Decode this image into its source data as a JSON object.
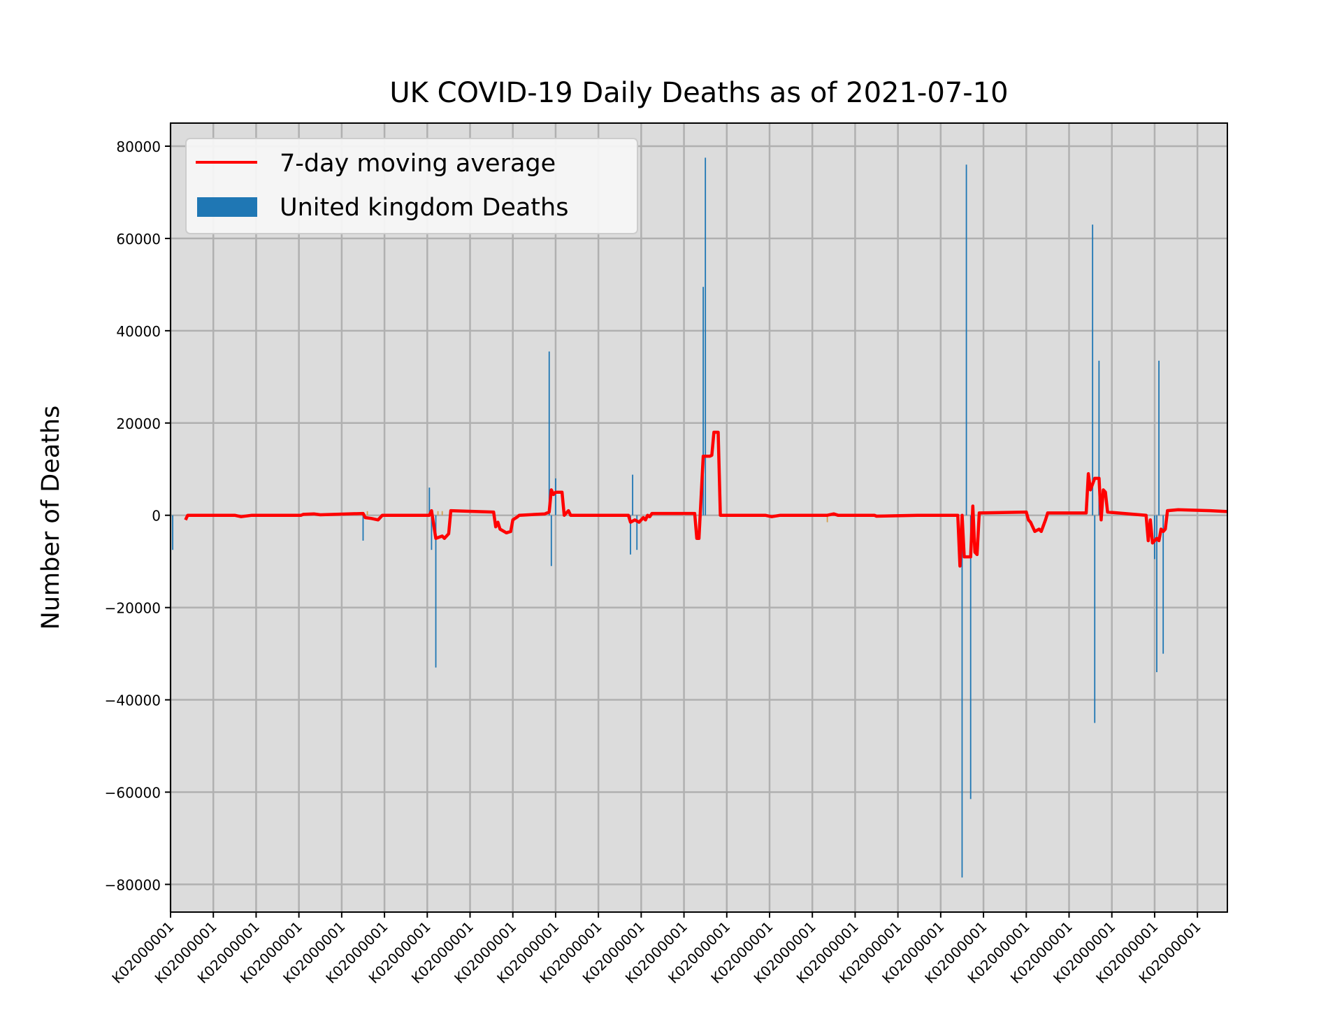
{
  "colors": {
    "figure_bg": "#ffffff",
    "axes_bg": "#dcdcdc",
    "grid": "#b0b0b0",
    "bar": "#1f77b4",
    "bar_small": "#d4a050",
    "line": "#ff0000",
    "text": "#000000"
  },
  "chart_data": {
    "type": "bar",
    "title": "UK COVID-19 Daily Deaths as of 2021-07-10",
    "xlabel": "",
    "ylabel": "Number of Deaths",
    "ylim": [
      -86000,
      85000
    ],
    "yticks": [
      -80000,
      -60000,
      -40000,
      -20000,
      0,
      20000,
      40000,
      60000,
      80000
    ],
    "ytick_labels": [
      "−80000",
      "−60000",
      "−40000",
      "−20000",
      "0",
      "20000",
      "40000",
      "60000",
      "80000"
    ],
    "xtick_labels": [
      "K02000001",
      "K02000001",
      "K02000001",
      "K02000001",
      "K02000001",
      "K02000001",
      "K02000001",
      "K02000001",
      "K02000001",
      "K02000001",
      "K02000001",
      "K02000001",
      "K02000001",
      "K02000001",
      "K02000001",
      "K02000001",
      "K02000001",
      "K02000001",
      "K02000001",
      "K02000001",
      "K02000001",
      "K02000001",
      "K02000001",
      "K02000001",
      "K02000001"
    ],
    "x_range": [
      0,
      494
    ],
    "xtick_positions": [
      0,
      20,
      40,
      60,
      80,
      100,
      120,
      140,
      160,
      180,
      200,
      220,
      240,
      260,
      280,
      300,
      320,
      340,
      360,
      380,
      400,
      420,
      440,
      460,
      480
    ],
    "grid": true,
    "legend": {
      "placement": "top-left",
      "entries": [
        {
          "label": "7-day moving average",
          "kind": "line"
        },
        {
          "label": "United kingdom Deaths",
          "kind": "bar"
        }
      ]
    },
    "series": [
      {
        "name": "United kingdom Deaths",
        "kind": "bar",
        "points": [
          [
            1,
            -7500
          ],
          [
            90,
            -5500
          ],
          [
            92,
            900
          ],
          [
            121,
            6000
          ],
          [
            122,
            -7500
          ],
          [
            124,
            -33000
          ],
          [
            125,
            900
          ],
          [
            127,
            900
          ],
          [
            177,
            35500
          ],
          [
            178,
            -11000
          ],
          [
            180,
            8000
          ],
          [
            215,
            -8500
          ],
          [
            216,
            8800
          ],
          [
            218,
            -7500
          ],
          [
            249,
            49500
          ],
          [
            250,
            77500
          ],
          [
            307,
            -1500
          ],
          [
            370,
            -78500
          ],
          [
            372,
            76000
          ],
          [
            374,
            -61500
          ],
          [
            431,
            63000
          ],
          [
            432,
            -45000
          ],
          [
            434,
            33500
          ],
          [
            460,
            -9500
          ],
          [
            461,
            -34000
          ],
          [
            462,
            33500
          ],
          [
            464,
            -30000
          ],
          [
            466,
            1000
          ]
        ]
      },
      {
        "name": "7-day moving average",
        "kind": "line",
        "points": [
          [
            7,
            -1000
          ],
          [
            8,
            0
          ],
          [
            30,
            0
          ],
          [
            33,
            -300
          ],
          [
            38,
            0
          ],
          [
            61,
            0
          ],
          [
            62,
            200
          ],
          [
            67,
            300
          ],
          [
            70,
            100
          ],
          [
            90,
            400
          ],
          [
            91,
            -500
          ],
          [
            94,
            -700
          ],
          [
            97,
            -1000
          ],
          [
            99,
            0
          ],
          [
            102,
            0
          ],
          [
            121,
            0
          ],
          [
            122,
            1000
          ],
          [
            124,
            -5000
          ],
          [
            127,
            -4500
          ],
          [
            128,
            -5000
          ],
          [
            130,
            -4000
          ],
          [
            131,
            1000
          ],
          [
            151,
            700
          ],
          [
            152,
            -2500
          ],
          [
            153,
            -1500
          ],
          [
            154,
            -3000
          ],
          [
            157,
            -3800
          ],
          [
            159,
            -3500
          ],
          [
            160,
            -1000
          ],
          [
            162,
            -400
          ],
          [
            163,
            0
          ],
          [
            175,
            300
          ],
          [
            177,
            700
          ],
          [
            178,
            5500
          ],
          [
            179,
            4500
          ],
          [
            180,
            5000
          ],
          [
            183,
            5000
          ],
          [
            184,
            0
          ],
          [
            186,
            1000
          ],
          [
            187,
            0
          ],
          [
            214,
            0
          ],
          [
            215,
            -1500
          ],
          [
            217,
            -1000
          ],
          [
            219,
            -1500
          ],
          [
            221,
            -500
          ],
          [
            222,
            -1000
          ],
          [
            223,
            0
          ],
          [
            224,
            -300
          ],
          [
            225,
            400
          ],
          [
            245,
            400
          ],
          [
            246,
            -5000
          ],
          [
            247,
            -5000
          ],
          [
            249,
            12800
          ],
          [
            252,
            12800
          ],
          [
            253,
            13000
          ],
          [
            254,
            18000
          ],
          [
            256,
            18000
          ],
          [
            257,
            0
          ],
          [
            278,
            0
          ],
          [
            281,
            -300
          ],
          [
            285,
            0
          ],
          [
            307,
            0
          ],
          [
            310,
            300
          ],
          [
            312,
            0
          ],
          [
            329,
            0
          ],
          [
            330,
            -200
          ],
          [
            349,
            0
          ],
          [
            361,
            0
          ],
          [
            362,
            0
          ],
          [
            368,
            0
          ],
          [
            369,
            -11000
          ],
          [
            370,
            0
          ],
          [
            371,
            -9000
          ],
          [
            374,
            -9000
          ],
          [
            375,
            2000
          ],
          [
            376,
            -8000
          ],
          [
            377,
            -8500
          ],
          [
            378,
            500
          ],
          [
            400,
            700
          ],
          [
            401,
            -1000
          ],
          [
            402,
            -1500
          ],
          [
            404,
            -3500
          ],
          [
            406,
            -3000
          ],
          [
            407,
            -3500
          ],
          [
            409,
            -1000
          ],
          [
            410,
            500
          ],
          [
            428,
            500
          ],
          [
            429,
            9000
          ],
          [
            430,
            5500
          ],
          [
            432,
            8000
          ],
          [
            434,
            8000
          ],
          [
            435,
            -1000
          ],
          [
            436,
            5500
          ],
          [
            437,
            5000
          ],
          [
            438,
            700
          ],
          [
            456,
            0
          ],
          [
            457,
            -5500
          ],
          [
            458,
            -1000
          ],
          [
            459,
            -6000
          ],
          [
            461,
            -5000
          ],
          [
            462,
            -5500
          ],
          [
            463,
            -3000
          ],
          [
            464,
            -3500
          ],
          [
            465,
            -3000
          ],
          [
            466,
            1000
          ],
          [
            471,
            1200
          ],
          [
            486,
            1000
          ],
          [
            494,
            800
          ]
        ]
      }
    ]
  }
}
